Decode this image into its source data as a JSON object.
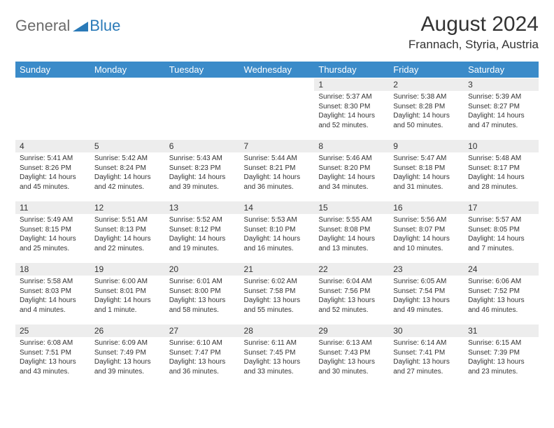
{
  "logo": {
    "word1": "General",
    "word2": "Blue",
    "color_gray": "#6b6b6b",
    "color_blue": "#2a7ab8"
  },
  "title": "August 2024",
  "subtitle": "Frannach, Styria, Austria",
  "colors": {
    "header_bg": "#3b8bc9",
    "header_text": "#ffffff",
    "daynum_bg": "#ededed",
    "text": "#333333",
    "page_bg": "#ffffff"
  },
  "weekdays": [
    "Sunday",
    "Monday",
    "Tuesday",
    "Wednesday",
    "Thursday",
    "Friday",
    "Saturday"
  ],
  "weeks": [
    [
      {
        "n": "",
        "sr": "",
        "ss": "",
        "dl": ""
      },
      {
        "n": "",
        "sr": "",
        "ss": "",
        "dl": ""
      },
      {
        "n": "",
        "sr": "",
        "ss": "",
        "dl": ""
      },
      {
        "n": "",
        "sr": "",
        "ss": "",
        "dl": ""
      },
      {
        "n": "1",
        "sr": "Sunrise: 5:37 AM",
        "ss": "Sunset: 8:30 PM",
        "dl": "Daylight: 14 hours and 52 minutes."
      },
      {
        "n": "2",
        "sr": "Sunrise: 5:38 AM",
        "ss": "Sunset: 8:28 PM",
        "dl": "Daylight: 14 hours and 50 minutes."
      },
      {
        "n": "3",
        "sr": "Sunrise: 5:39 AM",
        "ss": "Sunset: 8:27 PM",
        "dl": "Daylight: 14 hours and 47 minutes."
      }
    ],
    [
      {
        "n": "4",
        "sr": "Sunrise: 5:41 AM",
        "ss": "Sunset: 8:26 PM",
        "dl": "Daylight: 14 hours and 45 minutes."
      },
      {
        "n": "5",
        "sr": "Sunrise: 5:42 AM",
        "ss": "Sunset: 8:24 PM",
        "dl": "Daylight: 14 hours and 42 minutes."
      },
      {
        "n": "6",
        "sr": "Sunrise: 5:43 AM",
        "ss": "Sunset: 8:23 PM",
        "dl": "Daylight: 14 hours and 39 minutes."
      },
      {
        "n": "7",
        "sr": "Sunrise: 5:44 AM",
        "ss": "Sunset: 8:21 PM",
        "dl": "Daylight: 14 hours and 36 minutes."
      },
      {
        "n": "8",
        "sr": "Sunrise: 5:46 AM",
        "ss": "Sunset: 8:20 PM",
        "dl": "Daylight: 14 hours and 34 minutes."
      },
      {
        "n": "9",
        "sr": "Sunrise: 5:47 AM",
        "ss": "Sunset: 8:18 PM",
        "dl": "Daylight: 14 hours and 31 minutes."
      },
      {
        "n": "10",
        "sr": "Sunrise: 5:48 AM",
        "ss": "Sunset: 8:17 PM",
        "dl": "Daylight: 14 hours and 28 minutes."
      }
    ],
    [
      {
        "n": "11",
        "sr": "Sunrise: 5:49 AM",
        "ss": "Sunset: 8:15 PM",
        "dl": "Daylight: 14 hours and 25 minutes."
      },
      {
        "n": "12",
        "sr": "Sunrise: 5:51 AM",
        "ss": "Sunset: 8:13 PM",
        "dl": "Daylight: 14 hours and 22 minutes."
      },
      {
        "n": "13",
        "sr": "Sunrise: 5:52 AM",
        "ss": "Sunset: 8:12 PM",
        "dl": "Daylight: 14 hours and 19 minutes."
      },
      {
        "n": "14",
        "sr": "Sunrise: 5:53 AM",
        "ss": "Sunset: 8:10 PM",
        "dl": "Daylight: 14 hours and 16 minutes."
      },
      {
        "n": "15",
        "sr": "Sunrise: 5:55 AM",
        "ss": "Sunset: 8:08 PM",
        "dl": "Daylight: 14 hours and 13 minutes."
      },
      {
        "n": "16",
        "sr": "Sunrise: 5:56 AM",
        "ss": "Sunset: 8:07 PM",
        "dl": "Daylight: 14 hours and 10 minutes."
      },
      {
        "n": "17",
        "sr": "Sunrise: 5:57 AM",
        "ss": "Sunset: 8:05 PM",
        "dl": "Daylight: 14 hours and 7 minutes."
      }
    ],
    [
      {
        "n": "18",
        "sr": "Sunrise: 5:58 AM",
        "ss": "Sunset: 8:03 PM",
        "dl": "Daylight: 14 hours and 4 minutes."
      },
      {
        "n": "19",
        "sr": "Sunrise: 6:00 AM",
        "ss": "Sunset: 8:01 PM",
        "dl": "Daylight: 14 hours and 1 minute."
      },
      {
        "n": "20",
        "sr": "Sunrise: 6:01 AM",
        "ss": "Sunset: 8:00 PM",
        "dl": "Daylight: 13 hours and 58 minutes."
      },
      {
        "n": "21",
        "sr": "Sunrise: 6:02 AM",
        "ss": "Sunset: 7:58 PM",
        "dl": "Daylight: 13 hours and 55 minutes."
      },
      {
        "n": "22",
        "sr": "Sunrise: 6:04 AM",
        "ss": "Sunset: 7:56 PM",
        "dl": "Daylight: 13 hours and 52 minutes."
      },
      {
        "n": "23",
        "sr": "Sunrise: 6:05 AM",
        "ss": "Sunset: 7:54 PM",
        "dl": "Daylight: 13 hours and 49 minutes."
      },
      {
        "n": "24",
        "sr": "Sunrise: 6:06 AM",
        "ss": "Sunset: 7:52 PM",
        "dl": "Daylight: 13 hours and 46 minutes."
      }
    ],
    [
      {
        "n": "25",
        "sr": "Sunrise: 6:08 AM",
        "ss": "Sunset: 7:51 PM",
        "dl": "Daylight: 13 hours and 43 minutes."
      },
      {
        "n": "26",
        "sr": "Sunrise: 6:09 AM",
        "ss": "Sunset: 7:49 PM",
        "dl": "Daylight: 13 hours and 39 minutes."
      },
      {
        "n": "27",
        "sr": "Sunrise: 6:10 AM",
        "ss": "Sunset: 7:47 PM",
        "dl": "Daylight: 13 hours and 36 minutes."
      },
      {
        "n": "28",
        "sr": "Sunrise: 6:11 AM",
        "ss": "Sunset: 7:45 PM",
        "dl": "Daylight: 13 hours and 33 minutes."
      },
      {
        "n": "29",
        "sr": "Sunrise: 6:13 AM",
        "ss": "Sunset: 7:43 PM",
        "dl": "Daylight: 13 hours and 30 minutes."
      },
      {
        "n": "30",
        "sr": "Sunrise: 6:14 AM",
        "ss": "Sunset: 7:41 PM",
        "dl": "Daylight: 13 hours and 27 minutes."
      },
      {
        "n": "31",
        "sr": "Sunrise: 6:15 AM",
        "ss": "Sunset: 7:39 PM",
        "dl": "Daylight: 13 hours and 23 minutes."
      }
    ]
  ]
}
